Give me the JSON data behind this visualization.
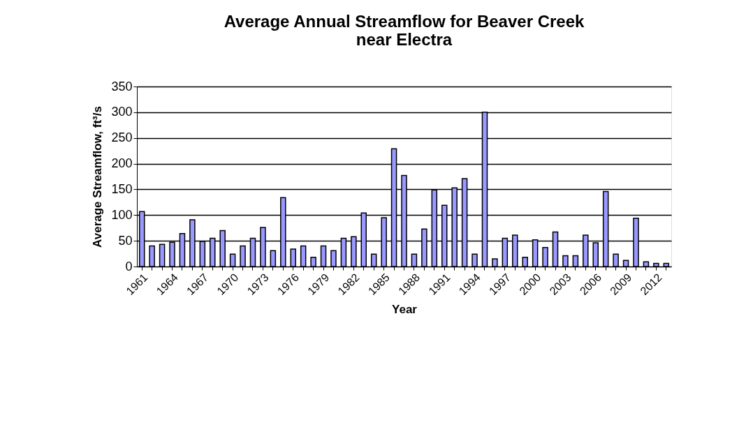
{
  "chart_data": {
    "type": "bar",
    "title": [
      "Average Annual Streamflow  for Beaver Creek",
      "near Electra"
    ],
    "xlabel": "Year",
    "ylabel": "Average Streamflow, ft³/s",
    "categories": [
      "1961",
      null,
      null,
      "1964",
      null,
      null,
      "1967",
      null,
      null,
      "1970",
      null,
      null,
      "1973",
      null,
      null,
      "1976",
      null,
      null,
      "1979",
      null,
      null,
      "1982",
      null,
      null,
      "1985",
      null,
      null,
      "1988",
      null,
      null,
      "1991",
      null,
      null,
      "1994",
      null,
      null,
      "1997",
      null,
      null,
      "2000",
      null,
      null,
      "2003",
      null,
      null,
      "2006",
      null,
      null,
      "2009",
      null,
      null,
      "2012",
      null
    ],
    "values": [
      107,
      40,
      43,
      47,
      64,
      91,
      49,
      55,
      70,
      24,
      40,
      55,
      76,
      31,
      134,
      34,
      40,
      18,
      40,
      31,
      55,
      58,
      104,
      24,
      95,
      229,
      177,
      24,
      73,
      149,
      119,
      153,
      171,
      24,
      300,
      15,
      55,
      61,
      18,
      52,
      37,
      67,
      21,
      21,
      61,
      46,
      146,
      24,
      12,
      94,
      9,
      6,
      6
    ],
    "color": "#9999ff",
    "ylim": [
      0,
      350
    ],
    "yticks": [
      0,
      50,
      100,
      150,
      200,
      250,
      300,
      350
    ],
    "grid": "y"
  }
}
